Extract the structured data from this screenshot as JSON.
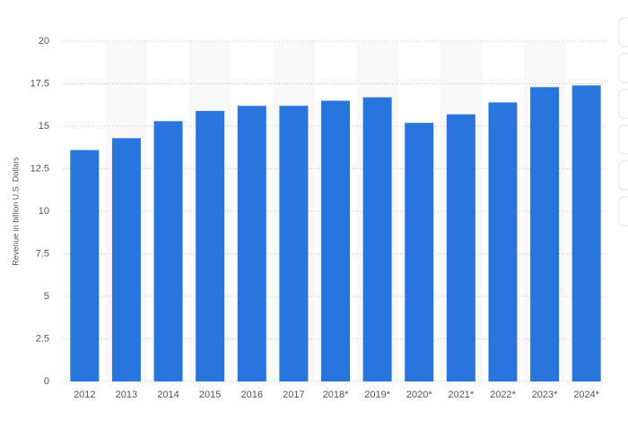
{
  "chart_data": {
    "type": "bar",
    "y_label": "Revenue in billion U.S. Dollars",
    "categories": [
      "2012",
      "2013",
      "2014",
      "2015",
      "2016",
      "2017",
      "2018*",
      "2019*",
      "2020*",
      "2021*",
      "2022*",
      "2023*",
      "2024*"
    ],
    "values": [
      13.6,
      14.3,
      15.3,
      15.9,
      16.2,
      16.2,
      16.5,
      16.7,
      15.2,
      15.7,
      16.4,
      17.3,
      17.4
    ],
    "color": "#2876dd",
    "ylim": [
      0,
      20
    ],
    "yticks": [
      0,
      2.5,
      5,
      7.5,
      10,
      12.5,
      15,
      17.5,
      20
    ],
    "grid": true
  }
}
